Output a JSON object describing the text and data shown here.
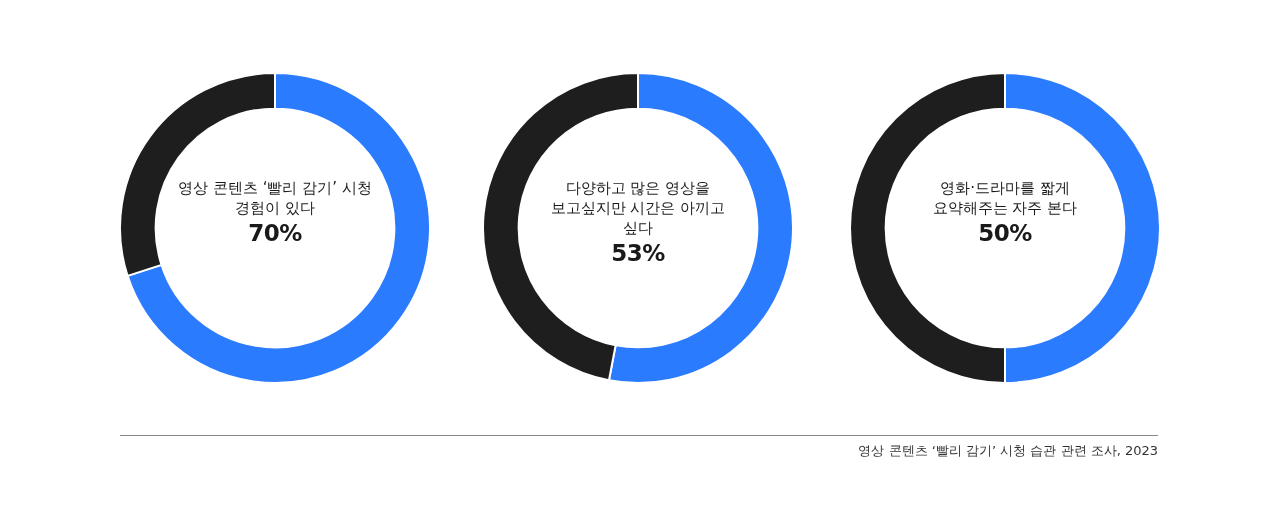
{
  "chart_data": [
    {
      "type": "donut",
      "title": "영상 콘텐츠 ‘빨리 감기’ 시청 경험이 있다",
      "categories": [
        null,
        null
      ],
      "values": [
        70,
        30
      ],
      "colors": [
        "#2b7bff",
        "#1e1e1e"
      ],
      "value_labels": [
        "70%",
        null
      ]
    },
    {
      "type": "donut",
      "title": "다양하고 많은 영상을 보고싶지만 시간은 아끼고 싶다",
      "categories": [
        null,
        null
      ],
      "values": [
        53,
        47
      ],
      "colors": [
        "#2b7bff",
        "#1e1e1e"
      ],
      "value_labels": [
        "53%",
        null
      ]
    },
    {
      "type": "donut",
      "title": "영화·드라마를 짧게 요약해주는 자주 본다",
      "categories": [
        null,
        null
      ],
      "values": [
        50,
        50
      ],
      "colors": [
        "#2b7bff",
        "#1e1e1e"
      ],
      "value_labels": [
        "50%",
        null
      ],
      "annotations": [
        "영상 콘텐츠 ‘빨리 감기’ 시청 습관 관련 조사, 2023"
      ]
    }
  ]
}
